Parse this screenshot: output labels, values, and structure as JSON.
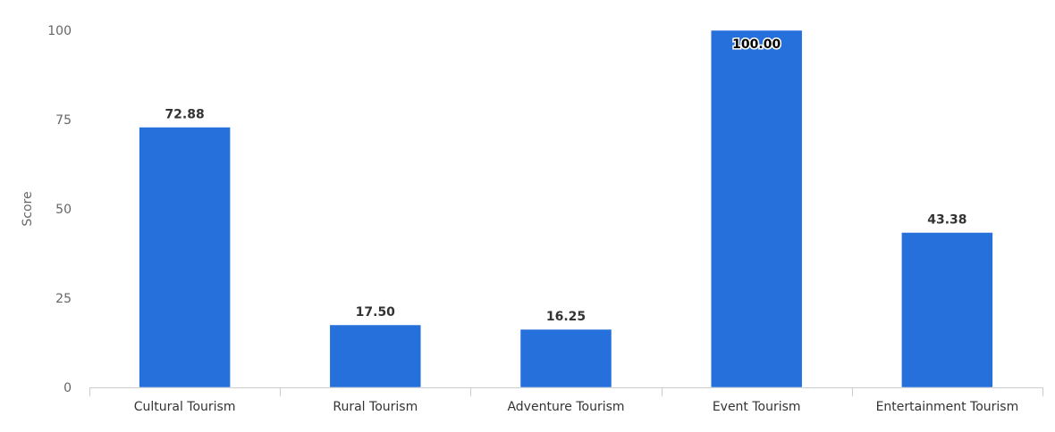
{
  "chart_data": {
    "type": "bar",
    "title": "",
    "xlabel": "",
    "ylabel": "Score",
    "ylim": [
      0,
      100
    ],
    "yticks": [
      0,
      25,
      50,
      75,
      100
    ],
    "categories": [
      "Cultural Tourism",
      "Rural Tourism",
      "Adventure Tourism",
      "Event Tourism",
      "Entertainment Tourism"
    ],
    "values": [
      72.88,
      17.5,
      16.25,
      100,
      43.38
    ],
    "value_labels": [
      "72.88",
      "17.50",
      "16.25",
      "100.00",
      "43.38"
    ],
    "bar_color": "#2670dc",
    "grid": false,
    "legend": "none"
  }
}
